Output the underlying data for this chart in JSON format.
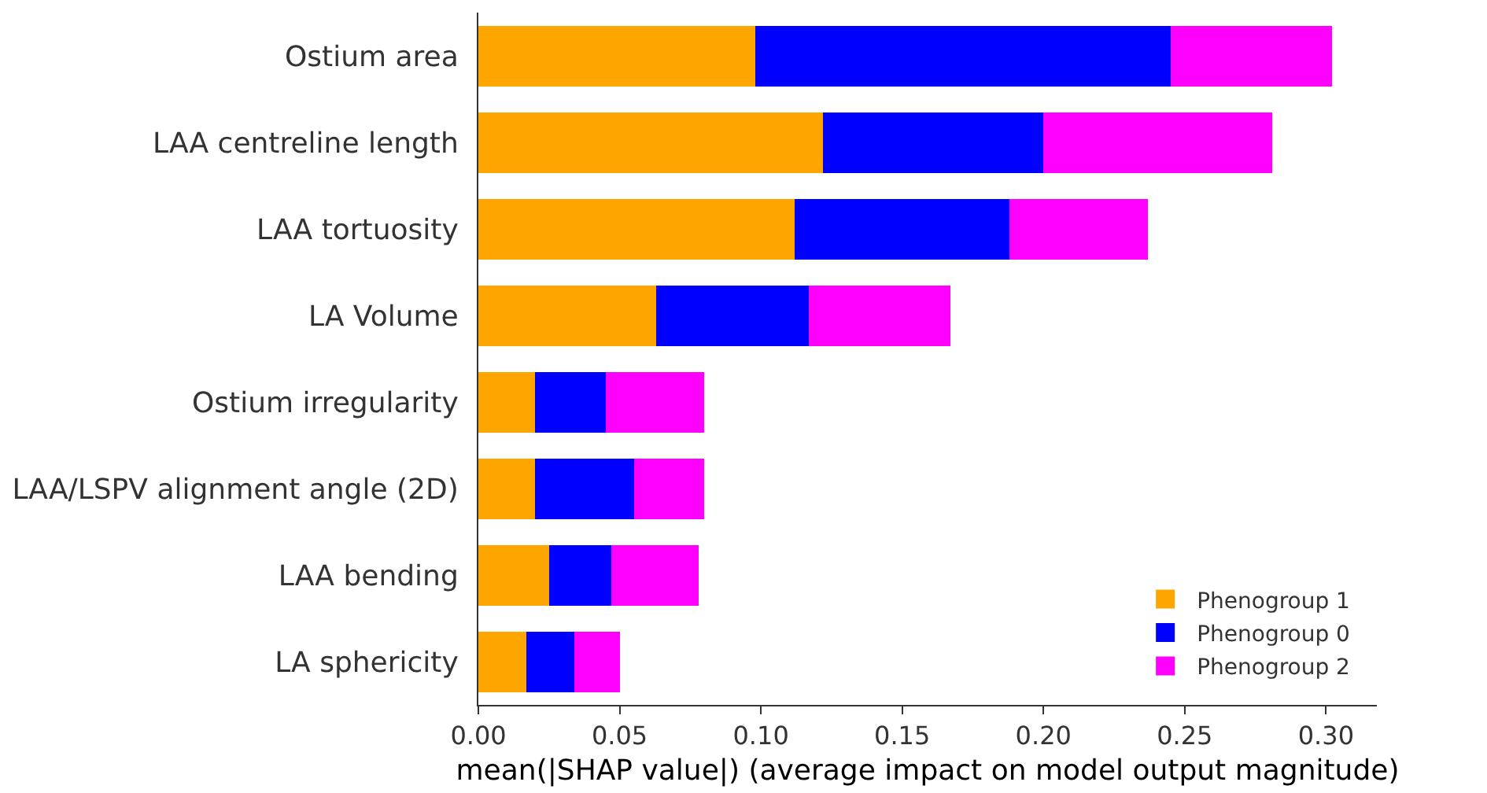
{
  "chart_data": {
    "type": "bar",
    "orientation": "horizontal",
    "stacked": true,
    "xlabel": "mean(|SHAP value|) (average impact on model output magnitude)",
    "categories": [
      "Ostium area",
      "LAA centreline length",
      "LAA tortuosity",
      "LA Volume",
      "Ostium irregularity",
      "LAA/LSPV alignment angle (2D)",
      "LAA bending",
      "LA sphericity"
    ],
    "series": [
      {
        "name": "Phenogroup 1",
        "color": "#ffa500",
        "values": [
          0.098,
          0.122,
          0.112,
          0.063,
          0.02,
          0.02,
          0.025,
          0.017
        ]
      },
      {
        "name": "Phenogroup 0",
        "color": "#0000ff",
        "values": [
          0.147,
          0.078,
          0.076,
          0.054,
          0.025,
          0.035,
          0.022,
          0.017
        ]
      },
      {
        "name": "Phenogroup 2",
        "color": "#ff00ff",
        "values": [
          0.057,
          0.081,
          0.049,
          0.05,
          0.035,
          0.025,
          0.031,
          0.016
        ]
      }
    ],
    "xlim": [
      0,
      0.318
    ],
    "xticks": [
      {
        "value": 0,
        "label": "0.00"
      },
      {
        "value": 0.05,
        "label": "0.05"
      },
      {
        "value": 0.1,
        "label": "0.10"
      },
      {
        "value": 0.15,
        "label": "0.15"
      },
      {
        "value": 0.2,
        "label": "0.20"
      },
      {
        "value": 0.25,
        "label": "0.25"
      },
      {
        "value": 0.3,
        "label": "0.30"
      }
    ],
    "legend": "bottom right"
  }
}
